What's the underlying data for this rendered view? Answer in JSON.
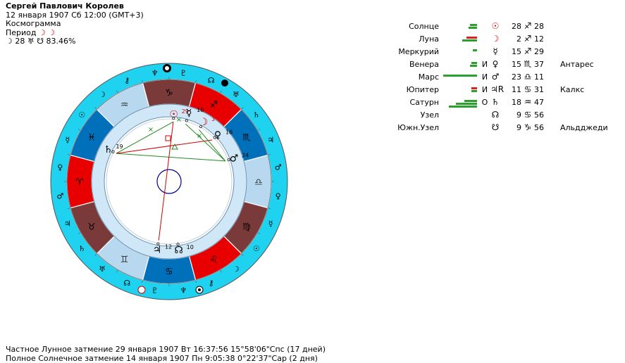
{
  "header": {
    "name": "Сергей Павлович Королев",
    "datetime": "12 января 1907  Сб  12:00 (GMT+3)",
    "type": "Космограмма",
    "period_label": "Период",
    "period_glyphs": "☽ ☽",
    "moon_line": "☽  28 ♅ ☋ 83.46%"
  },
  "signs": [
    "♑",
    "♐",
    "♏",
    "♎",
    "♍",
    "♌",
    "♋",
    "♊",
    "♉",
    "♈",
    "♓",
    "♒"
  ],
  "outer_glyphs": [
    "♆",
    "♇",
    "☊",
    "♅",
    "♄",
    "♃",
    "♂",
    "♀",
    "☿",
    "☉",
    "☽",
    "⚷",
    "♆",
    "♇",
    "☊",
    "♅",
    "♄",
    "♃",
    "♂",
    "♀",
    "☿",
    "☉",
    "☽",
    "⚷"
  ],
  "chart_planets": [
    {
      "name": "Солнце",
      "glyph": "☉",
      "value": "29"
    },
    {
      "name": "Луна",
      "glyph": "☽",
      "value": "3"
    },
    {
      "name": "Меркурий",
      "glyph": "☿",
      "value": "16"
    },
    {
      "name": "Венера",
      "glyph": "♀",
      "value": "16"
    },
    {
      "name": "Марс",
      "glyph": "♂",
      "value": "24"
    },
    {
      "name": "Юпитер",
      "glyph": "♃",
      "value": "12"
    },
    {
      "name": "Сатурн",
      "glyph": "♄",
      "value": "19"
    },
    {
      "name": "Узел",
      "glyph": "☊",
      "value": "10"
    },
    {
      "name": "Южн.Узел",
      "glyph": "☋",
      "value": "10"
    }
  ],
  "planets": [
    {
      "name": "Солнце",
      "bars": [
        "#2ca02c",
        "#2ca02c"
      ],
      "motion": "",
      "glyph": "☉",
      "deg": "28",
      "sign": "♐",
      "min": "28",
      "star": ""
    },
    {
      "name": "Луна",
      "bars": [
        "#e02020",
        "#2ca02c"
      ],
      "motion": "",
      "glyph": "☽",
      "deg": "2",
      "sign": "♐",
      "min": "12",
      "star": ""
    },
    {
      "name": "Меркурий",
      "bars": [
        "#2ca02c"
      ],
      "motion": "",
      "glyph": "☿",
      "deg": "15",
      "sign": "♐",
      "min": "29",
      "star": ""
    },
    {
      "name": "Венера",
      "bars": [
        "#2ca02c",
        "#2ca02c"
      ],
      "motion": "И",
      "glyph": "♀",
      "deg": "15",
      "sign": "♏",
      "min": "37",
      "star": "Антарес"
    },
    {
      "name": "Марс",
      "bars": [
        "#2ca02c"
      ],
      "motion": "И",
      "glyph": "♂",
      "deg": "23",
      "sign": "♎",
      "min": "11",
      "star": ""
    },
    {
      "name": "Юпитер",
      "bars": [
        "#e02020",
        "#2ca02c"
      ],
      "motion": "И",
      "glyph": "♃R",
      "deg": "11",
      "sign": "♋",
      "min": "31",
      "star": "Калкс"
    },
    {
      "name": "Сатурн",
      "bars": [
        "#2ca02c",
        "#2ca02c",
        "#2ca02c"
      ],
      "motion": "О",
      "glyph": "♄",
      "deg": "18",
      "sign": "♒",
      "min": "47",
      "star": ""
    },
    {
      "name": "Узел",
      "bars": [],
      "motion": "",
      "glyph": "☊",
      "deg": "9",
      "sign": "♋",
      "min": "56",
      "star": ""
    },
    {
      "name": "Южн.Узел",
      "bars": [],
      "motion": "",
      "glyph": "☋",
      "deg": "9",
      "sign": "♑",
      "min": "56",
      "star": "Альдджеди"
    }
  ],
  "footer": {
    "line1": "Частное Лунное затмение 29 января 1907 Вт 16:37:56 15°58'06\"Спс (17 дней)",
    "line2": "Полное Солнечное затмение 14 января 1907 Пн  9:05:38  0°22'37\"Сар (2 дня)"
  }
}
